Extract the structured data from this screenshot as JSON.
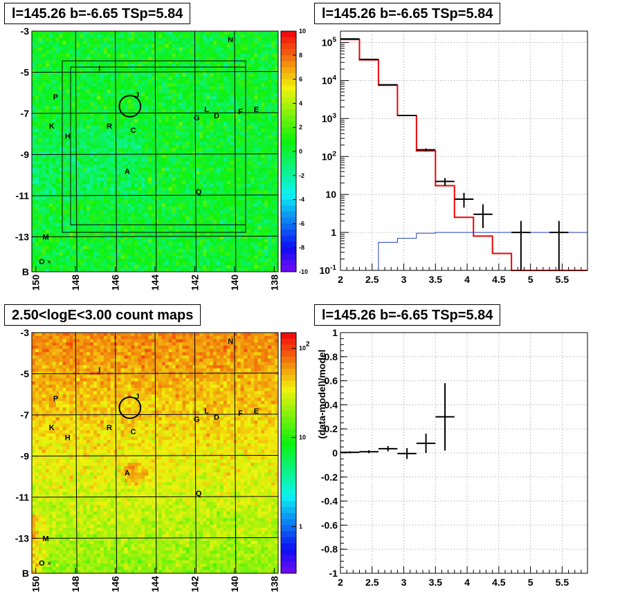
{
  "titles": {
    "top_left": "l=145.26 b=-6.65 TSp=5.84",
    "top_right": "l=145.26 b=-6.65 TSp=5.84",
    "bottom_left": "2.50<logE<3.00 count maps",
    "bottom_right": "l=145.26 b=-6.65 TSp=5.84"
  },
  "chart_data": [
    {
      "type": "heatmap",
      "title": "l=145.26 b=-6.65 TSp=5.84",
      "x_ticks": [
        "150",
        "148",
        "146",
        "144",
        "142",
        "140",
        "138"
      ],
      "y_ticks": [
        "-3",
        "-5",
        "-7",
        "-9",
        "-11",
        "-13",
        "B"
      ],
      "xlim": [
        150.2,
        137.8
      ],
      "ylim": [
        -14.7,
        -3
      ],
      "colorbar_ticks": [
        "10",
        "8",
        "6",
        "4",
        "2",
        "0",
        "-2",
        "-4",
        "-6",
        "-8",
        "-10"
      ],
      "colorbar_range": [
        -10,
        10
      ],
      "sources": [
        {
          "label": "N",
          "l": 140.2,
          "b": -3.4
        },
        {
          "label": "I",
          "l": 146.8,
          "b": -4.8
        },
        {
          "label": "J",
          "l": 144.9,
          "b": -6.1
        },
        {
          "label": "P",
          "l": 149.0,
          "b": -6.2
        },
        {
          "label": "L",
          "l": 141.4,
          "b": -6.8
        },
        {
          "label": "G",
          "l": 141.9,
          "b": -7.2
        },
        {
          "label": "D",
          "l": 140.9,
          "b": -7.1
        },
        {
          "label": "F",
          "l": 139.7,
          "b": -6.9
        },
        {
          "label": "E",
          "l": 138.9,
          "b": -6.8
        },
        {
          "label": "K",
          "l": 149.2,
          "b": -7.6
        },
        {
          "label": "R",
          "l": 146.3,
          "b": -7.6
        },
        {
          "label": "C",
          "l": 145.1,
          "b": -7.8
        },
        {
          "label": "H",
          "l": 148.4,
          "b": -8.1
        },
        {
          "label": "A",
          "l": 145.4,
          "b": -9.8
        },
        {
          "label": "Q",
          "l": 141.8,
          "b": -10.8
        },
        {
          "label": "M",
          "l": 149.5,
          "b": -13.0
        },
        {
          "label": "O",
          "l": 149.7,
          "b": -14.2
        }
      ],
      "target_circle": {
        "l": 145.26,
        "b": -6.65,
        "radius_deg": 0.5
      }
    },
    {
      "type": "line",
      "title": "l=145.26 b=-6.65 TSp=5.84",
      "x_ticks": [
        "2",
        "2.5",
        "3",
        "3.5",
        "4",
        "4.5",
        "5",
        "5.5"
      ],
      "xlim": [
        2,
        5.9
      ],
      "y_scale": "log",
      "y_ticks": [
        "10^-1",
        "1",
        "10",
        "10^2",
        "10^3",
        "10^4",
        "10^5"
      ],
      "ylim": [
        0.1,
        200000
      ],
      "grid": true,
      "series": [
        {
          "style": "red-step",
          "bin_edges": [
            2.0,
            2.3,
            2.6,
            2.9,
            3.2,
            3.5,
            3.8,
            4.1,
            4.4,
            4.7,
            5.0,
            5.3,
            5.6,
            5.9
          ],
          "values": [
            120000,
            35000,
            7500,
            1200,
            140,
            17,
            2.5,
            0.8,
            0.28,
            0.1,
            0.1,
            0.1,
            0.1
          ]
        },
        {
          "style": "blue-step",
          "bin_edges": [
            2.6,
            2.9,
            3.2,
            3.5,
            3.8,
            4.1,
            4.4,
            4.7,
            5.0,
            5.3,
            5.6,
            5.9
          ],
          "values": [
            0.55,
            0.7,
            0.95,
            1.0,
            1.0,
            1.0,
            1.0,
            1.0,
            1.0,
            1.0,
            1.0
          ]
        },
        {
          "style": "black-errorbars",
          "points": [
            {
              "x": 2.15,
              "xerr": 0.15,
              "y": 125000,
              "ylo": 124000,
              "yhi": 126000
            },
            {
              "x": 2.45,
              "xerr": 0.15,
              "y": 36000,
              "ylo": 35500,
              "yhi": 36500
            },
            {
              "x": 2.75,
              "xerr": 0.15,
              "y": 7700,
              "ylo": 7500,
              "yhi": 7900
            },
            {
              "x": 3.05,
              "xerr": 0.15,
              "y": 1200,
              "ylo": 1150,
              "yhi": 1250
            },
            {
              "x": 3.35,
              "xerr": 0.15,
              "y": 150,
              "ylo": 138,
              "yhi": 162
            },
            {
              "x": 3.65,
              "xerr": 0.15,
              "y": 22,
              "ylo": 17,
              "yhi": 27
            },
            {
              "x": 3.95,
              "xerr": 0.15,
              "y": 7.5,
              "ylo": 4.5,
              "yhi": 11
            },
            {
              "x": 4.25,
              "xerr": 0.15,
              "y": 3,
              "ylo": 1.3,
              "yhi": 5.5
            },
            {
              "x": 4.85,
              "xerr": 0.15,
              "y": 1,
              "ylo": 0.1,
              "yhi": 2
            },
            {
              "x": 5.45,
              "xerr": 0.15,
              "y": 1,
              "ylo": 0.1,
              "yhi": 2
            }
          ]
        }
      ]
    },
    {
      "type": "heatmap",
      "title": "2.50<logE<3.00 count maps",
      "x_ticks": [
        "150",
        "148",
        "146",
        "144",
        "142",
        "140",
        "138"
      ],
      "y_ticks": [
        "-3",
        "-5",
        "-7",
        "-9",
        "-11",
        "-13",
        "B"
      ],
      "xlim": [
        150.2,
        137.8
      ],
      "ylim": [
        -14.7,
        -3
      ],
      "colorbar_scale": "log",
      "colorbar_ticks": [
        "10^2",
        "10",
        "1"
      ],
      "colorbar_range": [
        0.3,
        150
      ],
      "sources": [
        {
          "label": "N",
          "l": 140.2,
          "b": -3.4
        },
        {
          "label": "I",
          "l": 146.8,
          "b": -4.8
        },
        {
          "label": "J",
          "l": 144.9,
          "b": -6.1
        },
        {
          "label": "P",
          "l": 149.0,
          "b": -6.2
        },
        {
          "label": "L",
          "l": 141.4,
          "b": -6.8
        },
        {
          "label": "G",
          "l": 141.9,
          "b": -7.2
        },
        {
          "label": "D",
          "l": 140.9,
          "b": -7.1
        },
        {
          "label": "F",
          "l": 139.7,
          "b": -6.9
        },
        {
          "label": "E",
          "l": 138.9,
          "b": -6.8
        },
        {
          "label": "K",
          "l": 149.2,
          "b": -7.6
        },
        {
          "label": "R",
          "l": 146.3,
          "b": -7.6
        },
        {
          "label": "C",
          "l": 145.1,
          "b": -7.8
        },
        {
          "label": "H",
          "l": 148.4,
          "b": -8.1
        },
        {
          "label": "A",
          "l": 145.4,
          "b": -9.8
        },
        {
          "label": "Q",
          "l": 141.8,
          "b": -10.8
        },
        {
          "label": "M",
          "l": 149.5,
          "b": -13.0
        },
        {
          "label": "O",
          "l": 149.7,
          "b": -14.2
        }
      ],
      "target_circle": {
        "l": 145.26,
        "b": -6.65,
        "radius_deg": 0.5
      }
    },
    {
      "type": "scatter",
      "title": "l=145.26 b=-6.65 TSp=5.84",
      "ylabel": "(data-model)/model",
      "x_ticks": [
        "2",
        "2.5",
        "3",
        "3.5",
        "4",
        "4.5",
        "5",
        "5.5"
      ],
      "xlim": [
        2,
        5.9
      ],
      "y_ticks": [
        "1",
        "0.8",
        "0.6",
        "0.4",
        "0.2",
        "0",
        "-0.2",
        "-0.4",
        "-0.6",
        "-0.8",
        "-1"
      ],
      "ylim": [
        -1,
        1
      ],
      "grid": true,
      "points": [
        {
          "x": 2.15,
          "xerr": 0.15,
          "y": 0.005,
          "yerr": 0.008
        },
        {
          "x": 2.45,
          "xerr": 0.15,
          "y": 0.01,
          "yerr": 0.012
        },
        {
          "x": 2.75,
          "xerr": 0.15,
          "y": 0.035,
          "yerr": 0.022
        },
        {
          "x": 3.05,
          "xerr": 0.15,
          "y": -0.005,
          "yerr": 0.045
        },
        {
          "x": 3.35,
          "xerr": 0.15,
          "y": 0.08,
          "yerr": 0.08
        },
        {
          "x": 3.65,
          "xerr": 0.15,
          "y": 0.3,
          "yerr": 0.28
        }
      ]
    }
  ]
}
